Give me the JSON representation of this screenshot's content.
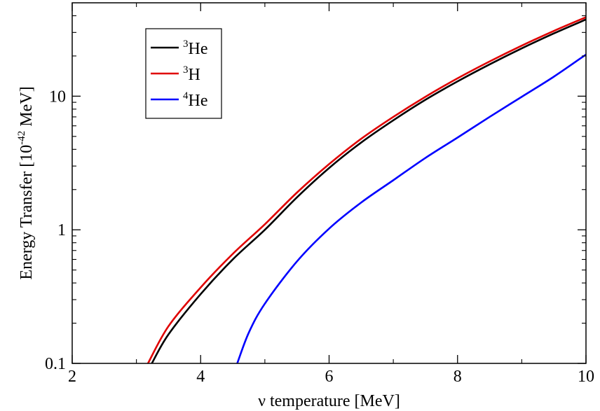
{
  "chart_data": {
    "type": "line",
    "xlabel": "ν temperature [MeV]",
    "ylabel_parts": {
      "prefix": "Energy Transfer [10",
      "exponent": "-42",
      "suffix": " MeV]"
    },
    "xlim": [
      2,
      10
    ],
    "ylim": [
      0.1,
      50
    ],
    "y_scale": "log",
    "x_ticks": [
      {
        "value": 2,
        "label": "2"
      },
      {
        "value": 4,
        "label": "4"
      },
      {
        "value": 6,
        "label": "6"
      },
      {
        "value": 8,
        "label": "8"
      },
      {
        "value": 10,
        "label": "10"
      }
    ],
    "y_ticks": [
      {
        "value": 0.1,
        "label": "0.1"
      },
      {
        "value": 1,
        "label": "1"
      },
      {
        "value": 10,
        "label": "10"
      }
    ],
    "legend_position": "top-left",
    "series": [
      {
        "name_sup": "3",
        "name_base": "He",
        "color": "#000000",
        "x": [
          3.24,
          3.5,
          4.0,
          4.5,
          5.0,
          5.5,
          6.0,
          6.5,
          7.0,
          7.5,
          8.0,
          8.5,
          9.0,
          9.5,
          10.0
        ],
        "y": [
          0.1,
          0.165,
          0.33,
          0.6,
          1.0,
          1.75,
          2.9,
          4.5,
          6.6,
          9.4,
          12.9,
          17.3,
          22.8,
          29.5,
          37.5
        ]
      },
      {
        "name_sup": "3",
        "name_base": "H",
        "color": "#e00000",
        "x": [
          3.18,
          3.5,
          4.0,
          4.5,
          5.0,
          5.5,
          6.0,
          6.5,
          7.0,
          7.5,
          8.0,
          8.5,
          9.0,
          9.5,
          10.0
        ],
        "y": [
          0.1,
          0.19,
          0.37,
          0.66,
          1.1,
          1.9,
          3.1,
          4.8,
          7.0,
          9.9,
          13.6,
          18.2,
          23.9,
          30.8,
          39.0
        ]
      },
      {
        "name_sup": "4",
        "name_base": "He",
        "color": "#0000ff",
        "x": [
          4.57,
          4.75,
          5.0,
          5.5,
          6.0,
          6.5,
          7.0,
          7.5,
          8.0,
          8.5,
          9.0,
          9.5,
          10.0
        ],
        "y": [
          0.1,
          0.17,
          0.28,
          0.58,
          1.02,
          1.6,
          2.35,
          3.45,
          4.9,
          7.0,
          9.9,
          14.0,
          20.5
        ]
      }
    ]
  }
}
